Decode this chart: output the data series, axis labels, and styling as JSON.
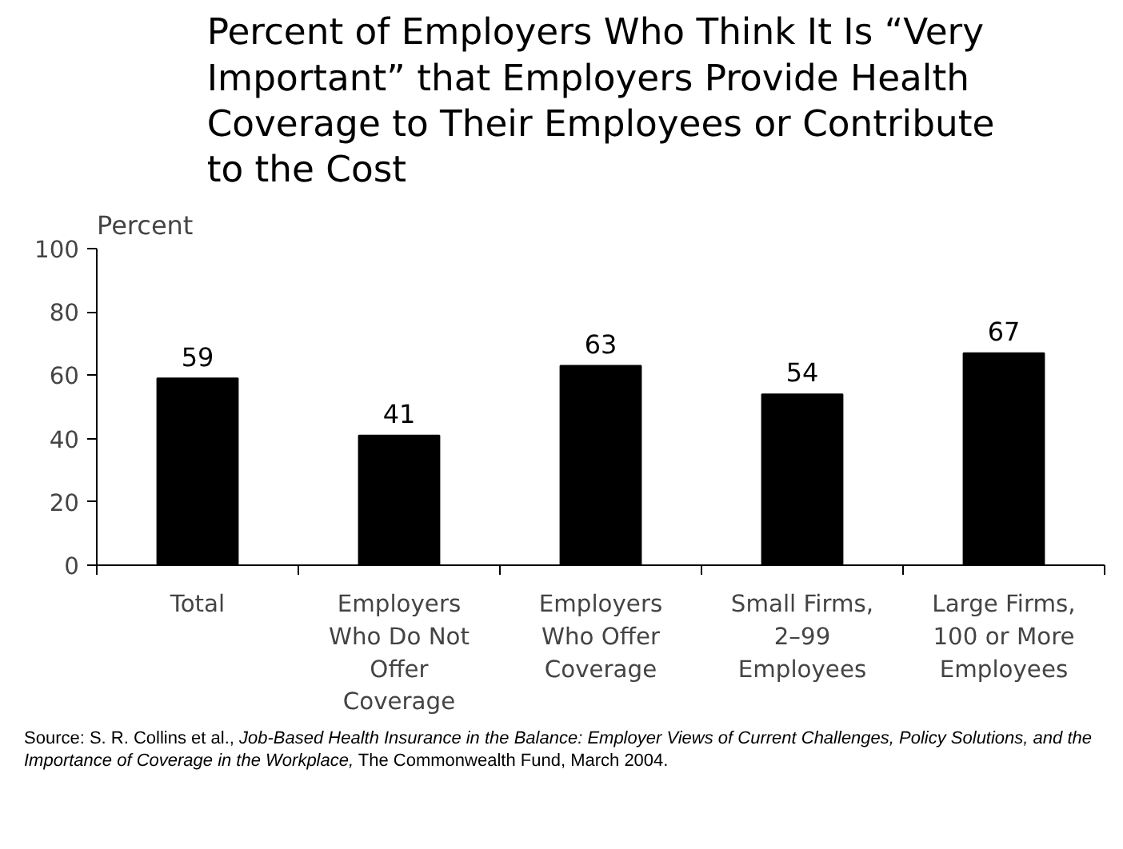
{
  "chart_data": {
    "type": "bar",
    "title": "Percent of Employers Who Think It Is “Very Important” that Employers Provide Health Coverage to Their Employees or Contribute to the Cost",
    "ylabel": "Percent",
    "categories": [
      "Total",
      "Employers Who Do Not Offer Coverage",
      "Employers Who Offer Coverage",
      "Small Firms, 2–99 Employees",
      "Large Firms, 100 or More Employees"
    ],
    "values": [
      59,
      41,
      63,
      54,
      67
    ],
    "color": "#000000",
    "ylim": [
      0,
      100
    ],
    "yticks": [
      0,
      20,
      40,
      60,
      80,
      100
    ],
    "data_labels": true,
    "grid": false,
    "annotations": [
      "Source: S. R. Collins et al., ",
      "Job-Based Health Insurance in the Balance: Employer Views of Current Challenges, Policy Solutions, and the Importance of Coverage in the Workplace,",
      "The Commonwealth Fund, March 2004."
    ]
  }
}
